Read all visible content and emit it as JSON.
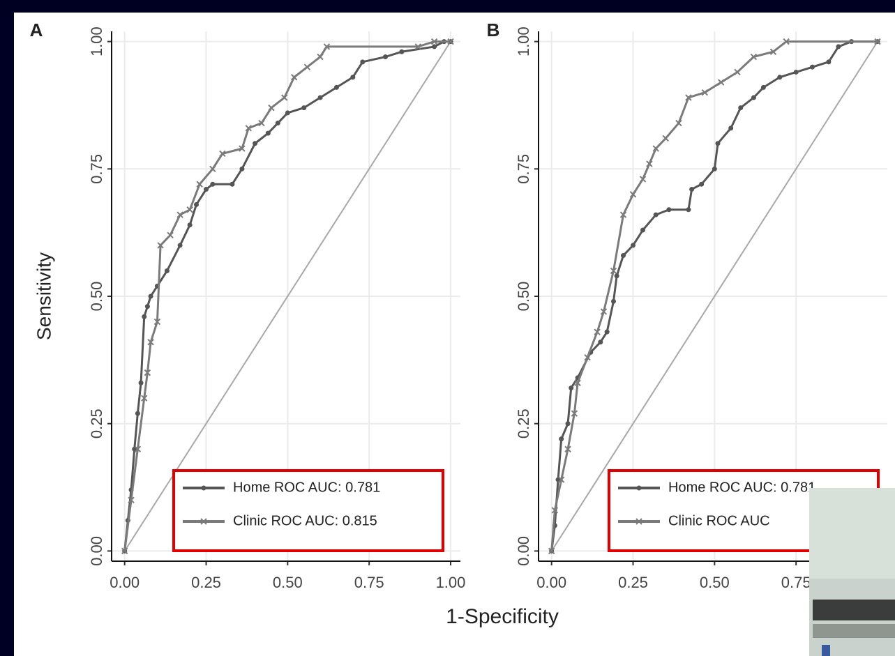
{
  "shared_x_label": "1-Specificity",
  "chart_data": [
    {
      "type": "line",
      "panel": "A",
      "y_label": "Sensitivity",
      "xlim": [
        -0.04,
        1.03
      ],
      "ylim": [
        -0.02,
        1.02
      ],
      "xticks": [
        {
          "value": 0,
          "label": "0.00"
        },
        {
          "value": 0.25,
          "label": "0.25"
        },
        {
          "value": 0.5,
          "label": "0.50"
        },
        {
          "value": 0.75,
          "label": "0.75"
        },
        {
          "value": 1,
          "label": "1.00"
        }
      ],
      "yticks": [
        {
          "value": 0,
          "label": "0.00"
        },
        {
          "value": 0.25,
          "label": "0.25"
        },
        {
          "value": 0.5,
          "label": "0.50"
        },
        {
          "value": 0.75,
          "label": "0.75"
        },
        {
          "value": 1,
          "label": "1.00"
        }
      ],
      "grid": true,
      "diagonal": {
        "x": [
          0,
          1
        ],
        "values": [
          0,
          1
        ],
        "color": "#a8a8a8"
      },
      "series": [
        {
          "name": "Home ROC AUC: 0.781",
          "color": "#555555",
          "marker": "circle",
          "x": [
            0,
            0.01,
            0.02,
            0.03,
            0.04,
            0.05,
            0.06,
            0.07,
            0.08,
            0.1,
            0.13,
            0.17,
            0.2,
            0.22,
            0.25,
            0.27,
            0.33,
            0.36,
            0.4,
            0.44,
            0.47,
            0.5,
            0.55,
            0.6,
            0.65,
            0.7,
            0.73,
            0.8,
            0.85,
            0.95,
            0.98,
            1
          ],
          "values": [
            0,
            0.06,
            0.12,
            0.2,
            0.27,
            0.33,
            0.46,
            0.48,
            0.5,
            0.52,
            0.55,
            0.6,
            0.64,
            0.68,
            0.71,
            0.72,
            0.72,
            0.75,
            0.8,
            0.82,
            0.84,
            0.86,
            0.87,
            0.89,
            0.91,
            0.93,
            0.96,
            0.97,
            0.98,
            0.99,
            1,
            1
          ]
        },
        {
          "name": "Clinic ROC AUC: 0.815",
          "color": "#7a7a7a",
          "marker": "cross",
          "x": [
            0,
            0.02,
            0.04,
            0.06,
            0.07,
            0.08,
            0.1,
            0.11,
            0.14,
            0.17,
            0.2,
            0.23,
            0.27,
            0.3,
            0.36,
            0.38,
            0.42,
            0.45,
            0.49,
            0.52,
            0.56,
            0.6,
            0.62,
            0.9,
            0.95,
            1
          ],
          "values": [
            0,
            0.1,
            0.2,
            0.3,
            0.35,
            0.41,
            0.45,
            0.6,
            0.62,
            0.66,
            0.67,
            0.72,
            0.75,
            0.78,
            0.79,
            0.83,
            0.84,
            0.87,
            0.89,
            0.93,
            0.95,
            0.97,
            0.99,
            0.99,
            1,
            1
          ]
        }
      ]
    },
    {
      "type": "line",
      "panel": "B",
      "xlim": [
        -0.04,
        1.03
      ],
      "ylim": [
        -0.02,
        1.02
      ],
      "xticks": [
        {
          "value": 0,
          "label": "0.00"
        },
        {
          "value": 0.25,
          "label": "0.25"
        },
        {
          "value": 0.5,
          "label": "0.50"
        },
        {
          "value": 0.75,
          "label": "0.75"
        }
      ],
      "yticks": [
        {
          "value": 0,
          "label": "0.00"
        },
        {
          "value": 0.25,
          "label": "0.25"
        },
        {
          "value": 0.5,
          "label": "0.50"
        },
        {
          "value": 0.75,
          "label": "0.75"
        },
        {
          "value": 1,
          "label": "1.00"
        }
      ],
      "grid": true,
      "diagonal": {
        "x": [
          0,
          1
        ],
        "values": [
          0,
          1
        ],
        "color": "#a8a8a8"
      },
      "series": [
        {
          "name": "Home ROC AUC: 0.781",
          "color": "#555555",
          "marker": "circle",
          "x": [
            0,
            0.01,
            0.02,
            0.03,
            0.05,
            0.06,
            0.08,
            0.12,
            0.15,
            0.17,
            0.19,
            0.2,
            0.22,
            0.25,
            0.28,
            0.32,
            0.36,
            0.42,
            0.43,
            0.46,
            0.5,
            0.51,
            0.55,
            0.58,
            0.62,
            0.65,
            0.7,
            0.75,
            0.8,
            0.85,
            0.88,
            0.92,
            1
          ],
          "values": [
            0,
            0.05,
            0.14,
            0.22,
            0.25,
            0.32,
            0.34,
            0.39,
            0.41,
            0.43,
            0.49,
            0.54,
            0.58,
            0.6,
            0.63,
            0.66,
            0.67,
            0.67,
            0.71,
            0.72,
            0.75,
            0.8,
            0.83,
            0.87,
            0.89,
            0.91,
            0.93,
            0.94,
            0.95,
            0.96,
            0.99,
            1,
            1
          ]
        },
        {
          "name": "Clinic ROC AUC",
          "color": "#7a7a7a",
          "marker": "cross",
          "x": [
            0,
            0.01,
            0.03,
            0.05,
            0.07,
            0.08,
            0.11,
            0.14,
            0.16,
            0.19,
            0.22,
            0.25,
            0.28,
            0.3,
            0.32,
            0.35,
            0.39,
            0.42,
            0.47,
            0.52,
            0.57,
            0.62,
            0.68,
            0.72,
            1
          ],
          "values": [
            0,
            0.08,
            0.14,
            0.2,
            0.27,
            0.33,
            0.38,
            0.43,
            0.47,
            0.55,
            0.66,
            0.7,
            0.73,
            0.76,
            0.79,
            0.81,
            0.84,
            0.89,
            0.9,
            0.92,
            0.94,
            0.97,
            0.98,
            1,
            1
          ]
        }
      ]
    }
  ]
}
